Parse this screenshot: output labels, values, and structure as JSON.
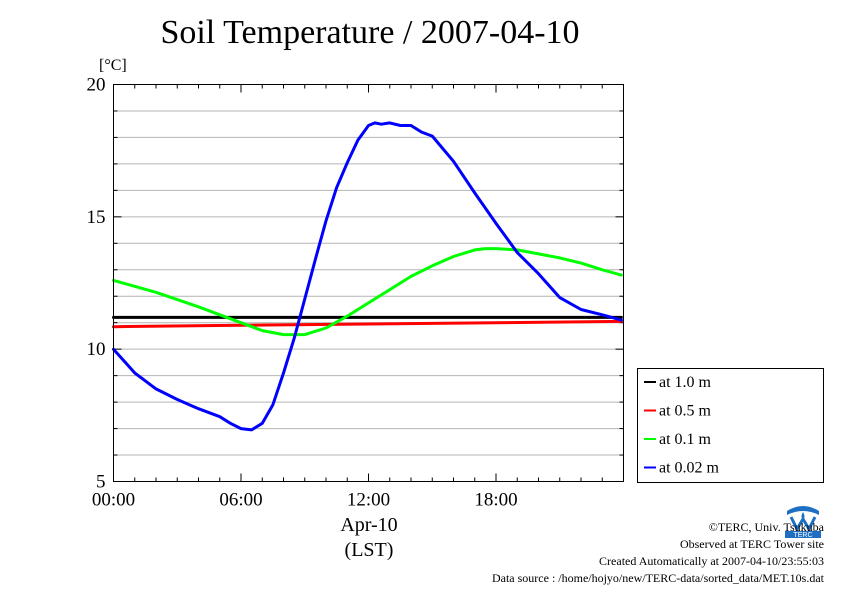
{
  "title": "Soil Temperature / 2007-04-10",
  "unit_label": "[°C]",
  "date_label": "Apr-10",
  "time_zone_label": "(LST)",
  "footer": {
    "copyright": "©TERC, Univ. Tsukuba",
    "site": "Observed at TERC Tower site",
    "created": "Created Automatically at 2007-04-10/23:55:03",
    "source": "Data source : /home/hojyo/new/TERC-data/sorted_data/MET.10s.dat"
  },
  "logo_text": "TERC",
  "chart_data": {
    "type": "line",
    "title": "Soil Temperature / 2007-04-10",
    "ylabel": "[°C]",
    "xlabel": "Apr-10 (LST)",
    "xlim": [
      0,
      23.9
    ],
    "ylim": [
      5,
      20
    ],
    "x_ticks": [
      0,
      6,
      12,
      18
    ],
    "x_tick_labels": [
      "00:00",
      "06:00",
      "12:00",
      "18:00"
    ],
    "y_ticks": [
      5,
      10,
      15,
      20
    ],
    "y_tick_labels": [
      "5",
      "10",
      "15",
      "20"
    ],
    "grid": true,
    "legend_position": "right",
    "series": [
      {
        "name": "at 1.0 m",
        "color": "#000000",
        "x": [
          0,
          6,
          12,
          18,
          23.9
        ],
        "y": [
          11.2,
          11.2,
          11.2,
          11.2,
          11.2
        ]
      },
      {
        "name": "at 0.5 m",
        "color": "#ff0000",
        "x": [
          0,
          6,
          12,
          18,
          23.9
        ],
        "y": [
          10.85,
          10.9,
          10.95,
          11.0,
          11.05
        ]
      },
      {
        "name": "at 0.1 m",
        "color": "#00ff00",
        "x": [
          0,
          2,
          4,
          5,
          6,
          7,
          8,
          9,
          10,
          11,
          12,
          13,
          14,
          15,
          16,
          17,
          17.5,
          18,
          19,
          20,
          21,
          22,
          23,
          23.9
        ],
        "y": [
          12.6,
          12.15,
          11.6,
          11.3,
          11.0,
          10.7,
          10.55,
          10.55,
          10.8,
          11.25,
          11.75,
          12.25,
          12.75,
          13.15,
          13.5,
          13.75,
          13.8,
          13.8,
          13.75,
          13.6,
          13.45,
          13.25,
          13.0,
          12.8
        ]
      },
      {
        "name": "at 0.02 m",
        "color": "#0000ff",
        "x": [
          0,
          1,
          2,
          3,
          4,
          5,
          5.5,
          6,
          6.5,
          7,
          7.5,
          8,
          8.5,
          9,
          9.5,
          10,
          10.5,
          11,
          11.5,
          12,
          12.3,
          12.6,
          13,
          13.5,
          14,
          14.5,
          15,
          16,
          17,
          18,
          19,
          20,
          20.5,
          21,
          22,
          23,
          23.9
        ],
        "y": [
          10.0,
          9.1,
          8.5,
          8.1,
          7.75,
          7.45,
          7.2,
          7.0,
          6.95,
          7.2,
          7.9,
          9.1,
          10.4,
          11.9,
          13.4,
          14.85,
          16.1,
          17.05,
          17.9,
          18.45,
          18.55,
          18.5,
          18.55,
          18.45,
          18.45,
          18.2,
          18.05,
          17.1,
          15.9,
          14.75,
          13.65,
          12.85,
          12.4,
          11.95,
          11.5,
          11.3,
          11.1
        ]
      }
    ]
  }
}
